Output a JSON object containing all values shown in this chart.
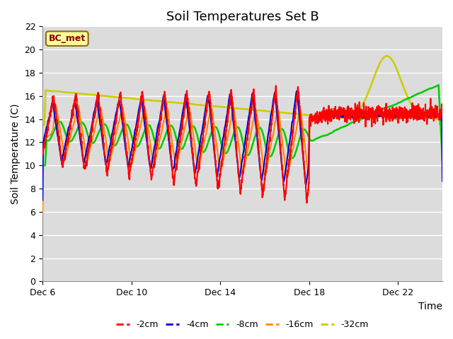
{
  "title": "Soil Temperatures Set B",
  "xlabel": "Time",
  "ylabel": "Soil Temperature (C)",
  "annotation": "BC_met",
  "ylim": [
    0,
    22
  ],
  "yticks": [
    0,
    2,
    4,
    6,
    8,
    10,
    12,
    14,
    16,
    18,
    20,
    22
  ],
  "xtick_labels": [
    "Dec 6",
    "Dec 10",
    "Dec 14",
    "Dec 18",
    "Dec 22"
  ],
  "xtick_positions": [
    0,
    4,
    8,
    12,
    16
  ],
  "xlim": [
    0,
    18
  ],
  "series_colors": [
    "#ff0000",
    "#0000cc",
    "#00cc00",
    "#ff8800",
    "#cccc00"
  ],
  "series_labels": [
    "-2cm",
    "-4cm",
    "-8cm",
    "-16cm",
    "-32cm"
  ],
  "bg_color": "#dcdcdc",
  "title_fontsize": 13,
  "axis_fontsize": 10,
  "tick_fontsize": 9
}
